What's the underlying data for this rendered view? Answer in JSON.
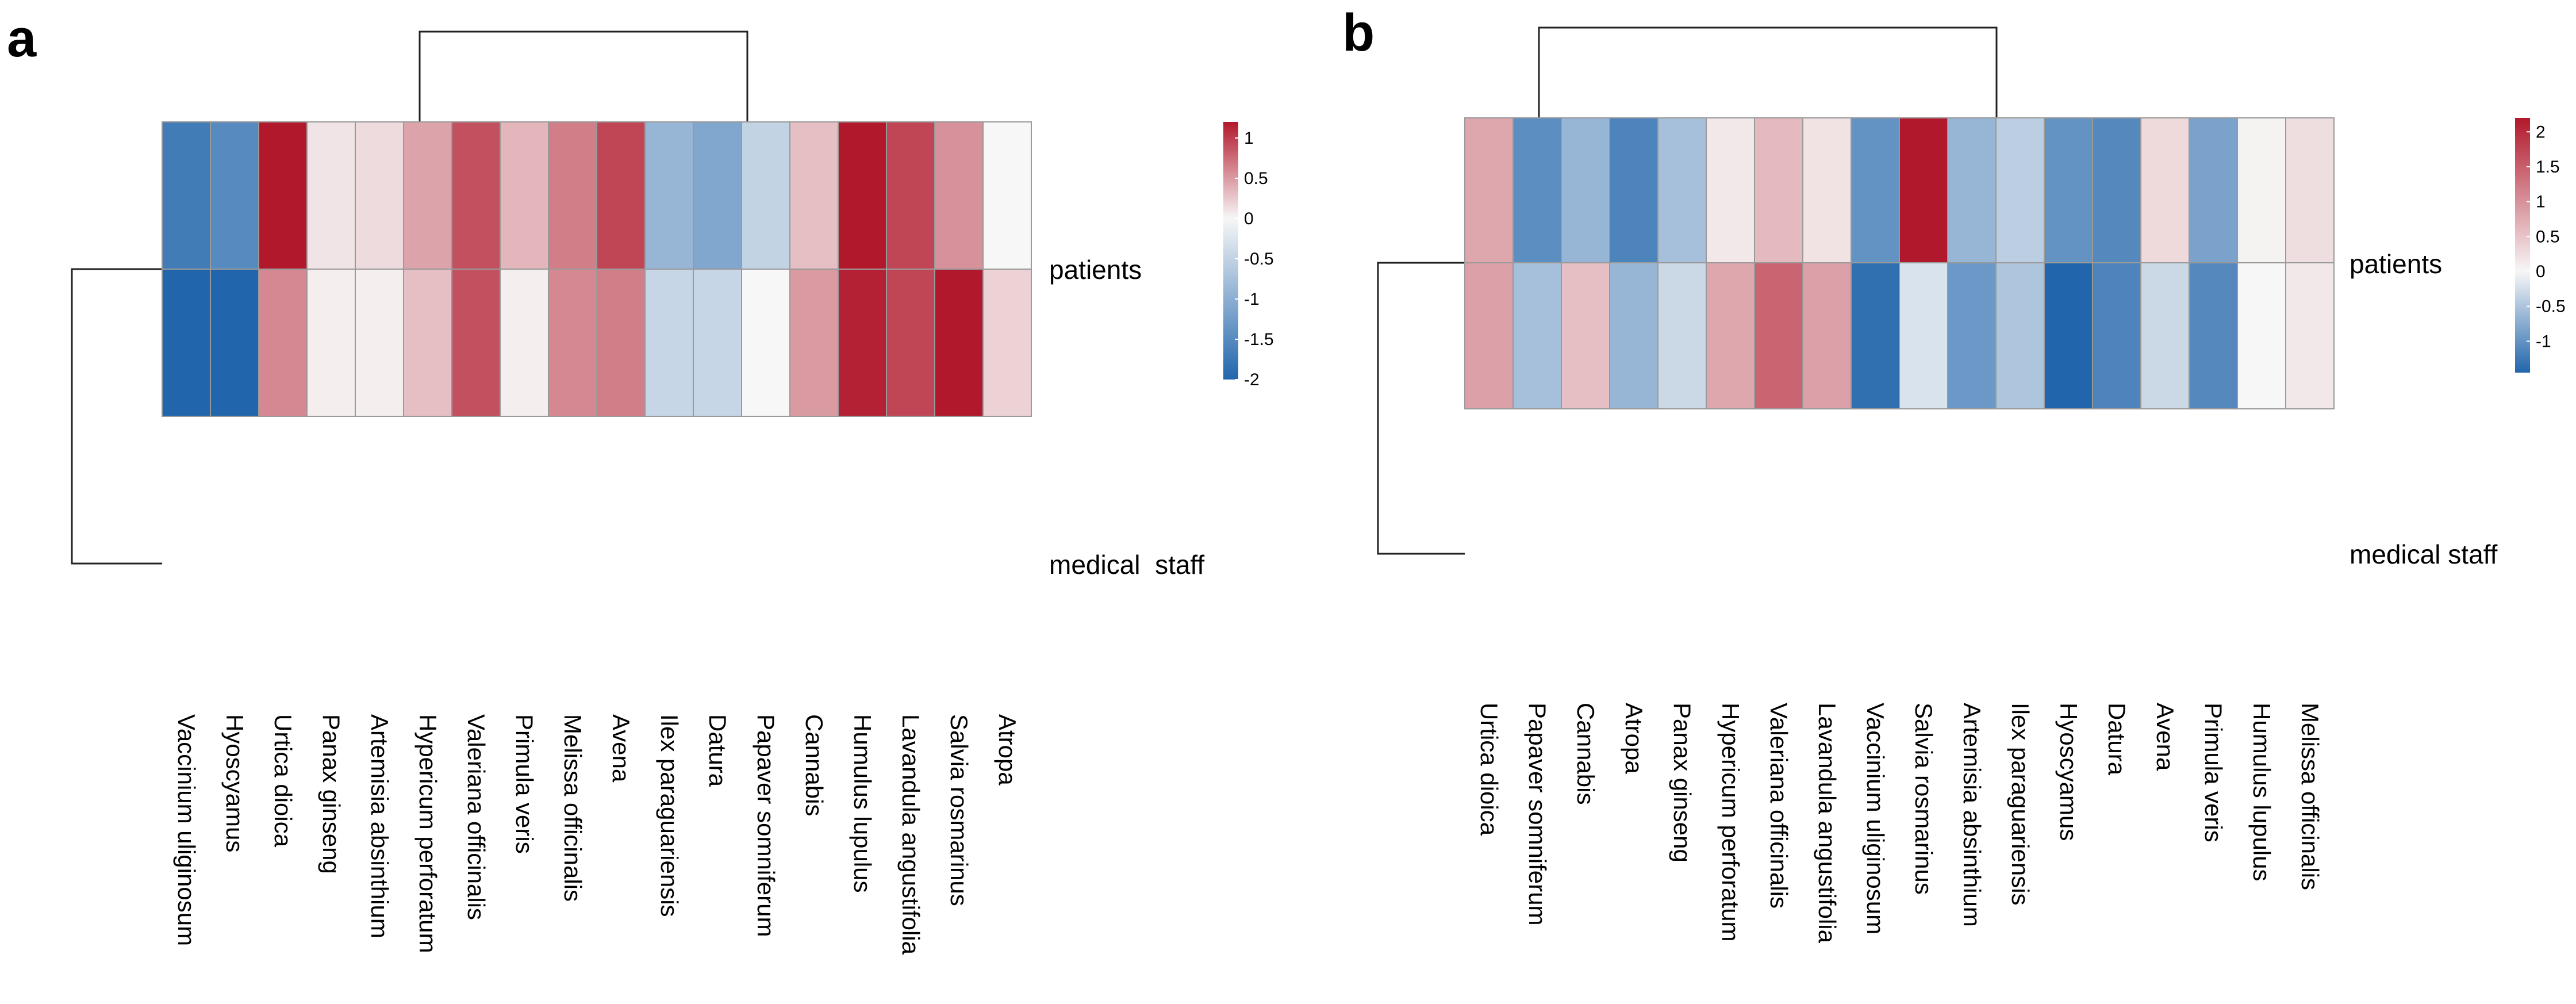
{
  "chart_data": [
    {
      "type": "heatmap",
      "panel": "a",
      "rows": [
        "patients",
        "medical  staff"
      ],
      "columns": [
        "Vaccinium uliginosum",
        "Hyoscyamus",
        "Urtica dioica",
        "Panax ginseng",
        "Artemisia absinthium",
        "Hypericum perforatum",
        "Valeriana officinalis",
        "Primula veris",
        "Melissa officinalis",
        "Avena",
        "Ilex paraguariensis",
        "Datura",
        "Papaver somniferum",
        "Cannabis",
        "Humulus lupulus",
        "Lavandula angustifolia",
        "Salvia rosmarinus",
        "Atropa"
      ],
      "values": [
        [
          -1.7,
          -1.5,
          1.2,
          0.1,
          0.15,
          0.45,
          0.9,
          0.35,
          0.65,
          0.95,
          -0.9,
          -1.1,
          -0.5,
          0.3,
          1.2,
          0.95,
          0.55,
          0.0
        ],
        [
          -2.0,
          -2.0,
          0.6,
          0.05,
          0.05,
          0.3,
          0.9,
          0.05,
          0.6,
          0.65,
          -0.45,
          -0.45,
          0.0,
          0.5,
          1.15,
          0.95,
          1.2,
          0.2
        ]
      ],
      "colorbar": {
        "min": -2,
        "max": 1.2,
        "ticks": [
          "1",
          "0.5",
          "0",
          "-0.5",
          "-1",
          "-1.5",
          "-2"
        ]
      },
      "colors": {
        "low": "#2166ac",
        "mid": "#f7f7f7",
        "high": "#b2182b"
      }
    },
    {
      "type": "heatmap",
      "panel": "b",
      "rows": [
        "patients",
        "medical staff"
      ],
      "columns": [
        "Urtica dioica",
        "Papaver somniferum",
        "Cannabis",
        "Atropa",
        "Panax ginseng",
        "Hypericum perforatum",
        "Valeriana officinalis",
        "Lavandula angustifolia",
        "Vaccinium uliginosum",
        "Salvia rosmarinus",
        "Artemisia absinthium",
        "Ilex paraguariensis",
        "Hyoscyamus",
        "Datura",
        "Avena",
        "Primula veris",
        "Humulus lupulus",
        "Melissa officinalis"
      ],
      "values": [
        [
          0.8,
          -1.05,
          -0.65,
          -1.15,
          -0.55,
          0.15,
          0.6,
          0.2,
          -1.0,
          2.2,
          -0.65,
          -0.4,
          -1.0,
          -1.1,
          0.3,
          -0.85,
          0.05,
          0.25
        ],
        [
          0.85,
          -0.55,
          0.55,
          -0.65,
          -0.3,
          0.8,
          1.45,
          0.85,
          -1.35,
          -0.2,
          -0.95,
          -0.5,
          -1.45,
          -1.15,
          -0.3,
          -1.1,
          0.0,
          0.15
        ]
      ],
      "colorbar": {
        "min": -1.45,
        "max": 2.2,
        "ticks": [
          "2",
          "1.5",
          "1",
          "0.5",
          "0",
          "-0.5",
          "-1"
        ]
      },
      "colors": {
        "low": "#2166ac",
        "mid": "#f7f7f7",
        "high": "#b2182b"
      }
    }
  ]
}
